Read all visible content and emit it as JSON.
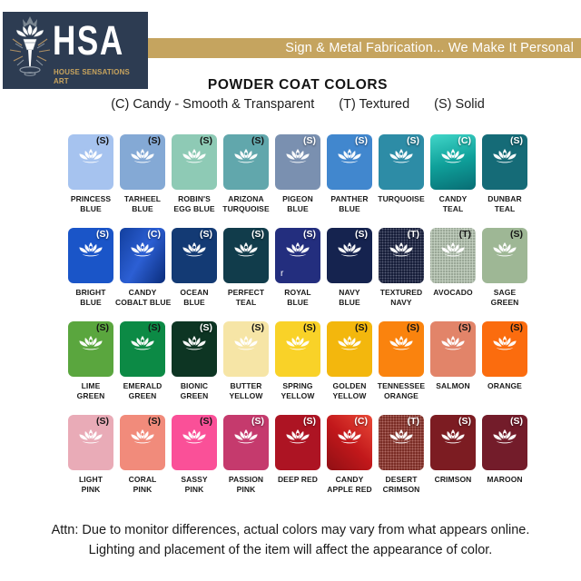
{
  "header": {
    "logo": {
      "acronym": "HSA",
      "subtitle": "HOUSE SENSATIONS ART",
      "bg_color": "#2d3c52",
      "accent_color": "#c8a45e"
    },
    "banner": {
      "text": "Sign & Metal Fabrication... We Make It Personal",
      "bg_color": "#c5a45f",
      "text_color": "#ffffff"
    }
  },
  "title": "POWDER COAT COLORS",
  "legend": {
    "candy": "(C) Candy - Smooth & Transparent",
    "textured": "(T) Textured",
    "solid": "(S) Solid"
  },
  "swatches": [
    {
      "name": "Princess Blue",
      "lines": [
        "PRINCESS",
        "BLUE"
      ],
      "finish_label": "(S)",
      "finish": "solid",
      "color": "#a6c3ef",
      "label_style": "dark"
    },
    {
      "name": "Tarheel Blue",
      "lines": [
        "TARHEEL",
        "BLUE"
      ],
      "finish_label": "(S)",
      "finish": "solid",
      "color": "#84a9d5",
      "label_style": "dark"
    },
    {
      "name": "Robin's Egg Blue",
      "lines": [
        "ROBIN'S",
        "EGG BLUE"
      ],
      "finish_label": "(S)",
      "finish": "solid",
      "color": "#8ecab5",
      "label_style": "dark"
    },
    {
      "name": "Arizona Turquoise",
      "lines": [
        "ARIZONA",
        "TURQUOISE"
      ],
      "finish_label": "(S)",
      "finish": "solid",
      "color": "#61a7ac",
      "label_style": "dark"
    },
    {
      "name": "Pigeon Blue",
      "lines": [
        "PIGEON",
        "BLUE"
      ],
      "finish_label": "(S)",
      "finish": "solid",
      "color": "#7a90b0",
      "label_style": "light"
    },
    {
      "name": "Panther Blue",
      "lines": [
        "PANTHER",
        "BLUE"
      ],
      "finish_label": "(S)",
      "finish": "solid",
      "color": "#4187ce",
      "label_style": "light"
    },
    {
      "name": "Turquoise",
      "lines": [
        "TURQUOISE"
      ],
      "finish_label": "(S)",
      "finish": "solid",
      "color": "#2d8ca6",
      "label_style": "light"
    },
    {
      "name": "Candy Teal",
      "lines": [
        "CANDY",
        "TEAL"
      ],
      "finish_label": "(C)",
      "finish": "candy",
      "color": "#10a29b",
      "gradient": {
        "angle": "165deg",
        "stops": [
          "#41d6c8",
          "#0fa09a",
          "#086d74"
        ]
      },
      "label_style": "light"
    },
    {
      "name": "Dunbar Teal",
      "lines": [
        "DUNBAR",
        "TEAL"
      ],
      "finish_label": "(S)",
      "finish": "solid",
      "color": "#156b77",
      "label_style": "light"
    },
    {
      "name": "Bright Blue",
      "lines": [
        "BRIGHT",
        "BLUE"
      ],
      "finish_label": "(S)",
      "finish": "solid",
      "color": "#1a55c8",
      "label_style": "light"
    },
    {
      "name": "Candy Cobalt Blue",
      "lines": [
        "CANDY",
        "COBALT BLUE"
      ],
      "finish_label": "(C)",
      "finish": "candy",
      "color": "#0d3aa4",
      "gradient": {
        "angle": "120deg",
        "stops": [
          "#123f9e",
          "#2c5fd4",
          "#0a2c7a"
        ]
      },
      "label_style": "light"
    },
    {
      "name": "Ocean Blue",
      "lines": [
        "OCEAN",
        "BLUE"
      ],
      "finish_label": "(S)",
      "finish": "solid",
      "color": "#133a74",
      "label_style": "light"
    },
    {
      "name": "Perfect Teal",
      "lines": [
        "PERFECT",
        "TEAL"
      ],
      "finish_label": "(S)",
      "finish": "solid",
      "color": "#113c4b",
      "label_style": "light"
    },
    {
      "name": "Royal Blue",
      "lines": [
        "ROYAL",
        "BLUE"
      ],
      "finish_label": "(S)",
      "finish": "solid",
      "color": "#232e7e",
      "label_style": "light"
    },
    {
      "name": "Navy Blue",
      "lines": [
        "NAVY",
        "BLUE"
      ],
      "finish_label": "(S)",
      "finish": "solid",
      "color": "#15234f",
      "label_style": "light"
    },
    {
      "name": "Textured Navy",
      "lines": [
        "TEXTURED",
        "NAVY"
      ],
      "finish_label": "(T)",
      "finish": "textured",
      "color": "#1b2342",
      "label_style": "light"
    },
    {
      "name": "Avocado",
      "lines": [
        "AVOCADO"
      ],
      "finish_label": "(T)",
      "finish": "textured",
      "color": "#b2c1ae",
      "label_style": "dark"
    },
    {
      "name": "Sage Green",
      "lines": [
        "SAGE",
        "GREEN"
      ],
      "finish_label": "(S)",
      "finish": "solid",
      "color": "#9eb795",
      "label_style": "dark"
    },
    {
      "name": "Lime Green",
      "lines": [
        "LIME",
        "GREEN"
      ],
      "finish_label": "(S)",
      "finish": "solid",
      "color": "#5aa63e",
      "label_style": "dark"
    },
    {
      "name": "Emerald Green",
      "lines": [
        "EMERALD",
        "GREEN"
      ],
      "finish_label": "(S)",
      "finish": "solid",
      "color": "#0c8a45",
      "label_style": "dark"
    },
    {
      "name": "Bionic Green",
      "lines": [
        "BIONIC",
        "GREEN"
      ],
      "finish_label": "(S)",
      "finish": "solid",
      "color": "#0d3523",
      "label_style": "light"
    },
    {
      "name": "Butter Yellow",
      "lines": [
        "BUTTER",
        "YELLOW"
      ],
      "finish_label": "(S)",
      "finish": "solid",
      "color": "#f6e5a6",
      "label_style": "dark"
    },
    {
      "name": "Spring Yellow",
      "lines": [
        "SPRING",
        "YELLOW"
      ],
      "finish_label": "(S)",
      "finish": "solid",
      "color": "#f9d228",
      "label_style": "dark"
    },
    {
      "name": "Golden Yellow",
      "lines": [
        "GOLDEN",
        "YELLOW"
      ],
      "finish_label": "(S)",
      "finish": "solid",
      "color": "#f3b70d",
      "label_style": "dark"
    },
    {
      "name": "Tennessee Orange",
      "lines": [
        "TENNESSEE",
        "ORANGE"
      ],
      "finish_label": "(S)",
      "finish": "solid",
      "color": "#fa830e",
      "label_style": "dark"
    },
    {
      "name": "Salmon",
      "lines": [
        "SALMON"
      ],
      "finish_label": "(S)",
      "finish": "solid",
      "color": "#e28469",
      "label_style": "dark"
    },
    {
      "name": "Orange",
      "lines": [
        "ORANGE"
      ],
      "finish_label": "(S)",
      "finish": "solid",
      "color": "#fb6c0e",
      "label_style": "dark"
    },
    {
      "name": "Light Pink",
      "lines": [
        "LIGHT",
        "PINK"
      ],
      "finish_label": "(S)",
      "finish": "solid",
      "color": "#e9abb7",
      "label_style": "dark"
    },
    {
      "name": "Coral Pink",
      "lines": [
        "CORAL",
        "PINK"
      ],
      "finish_label": "(S)",
      "finish": "solid",
      "color": "#f18b7b",
      "label_style": "dark"
    },
    {
      "name": "Sassy Pink",
      "lines": [
        "SASSY",
        "PINK"
      ],
      "finish_label": "(S)",
      "finish": "solid",
      "color": "#fa5098",
      "label_style": "dark"
    },
    {
      "name": "Passion Pink",
      "lines": [
        "PASSION",
        "PINK"
      ],
      "finish_label": "(S)",
      "finish": "solid",
      "color": "#c53a6d",
      "label_style": "light"
    },
    {
      "name": "Deep Red",
      "lines": [
        "DEEP RED"
      ],
      "finish_label": "(S)",
      "finish": "solid",
      "color": "#ad1423",
      "label_style": "light"
    },
    {
      "name": "Candy Apple Red",
      "lines": [
        "CANDY",
        "APPLE RED"
      ],
      "finish_label": "(C)",
      "finish": "candy",
      "color": "#c2181b",
      "gradient": {
        "angle": "225deg",
        "stops": [
          "#ea4a38",
          "#c2181b",
          "#8f0f14"
        ]
      },
      "label_style": "light"
    },
    {
      "name": "Desert Crimson",
      "lines": [
        "DESERT",
        "CRIMSON"
      ],
      "finish_label": "(T)",
      "finish": "textured",
      "color": "#8c362e",
      "label_style": "light"
    },
    {
      "name": "Crimson",
      "lines": [
        "CRIMSON"
      ],
      "finish_label": "(S)",
      "finish": "solid",
      "color": "#7c1c22",
      "label_style": "light"
    },
    {
      "name": "Maroon",
      "lines": [
        "MAROON"
      ],
      "finish_label": "(S)",
      "finish": "solid",
      "color": "#731c2a",
      "label_style": "light"
    }
  ],
  "artifact": {
    "text": "r"
  },
  "footer": {
    "line1": "Attn: Due to monitor differences, actual colors may vary from what appears online.",
    "line2": "Lighting and placement of the item will affect the appearance of color."
  }
}
